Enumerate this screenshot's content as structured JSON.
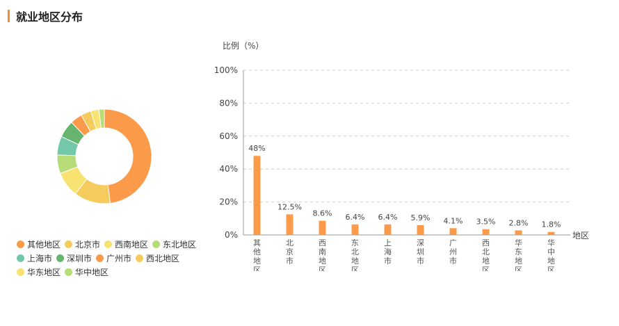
{
  "header": {
    "title": "就业地区分布"
  },
  "colors": {
    "accent": "#f28d2c",
    "bar": "#fb9b4a",
    "grid": "#cfcfcf",
    "axis": "#999999"
  },
  "chart_data": [
    {
      "type": "pie",
      "variant": "donut",
      "categories": [
        "其他地区",
        "北京市",
        "西南地区",
        "东北地区",
        "上海市",
        "深圳市",
        "广州市",
        "西北地区",
        "华东地区",
        "华中地区"
      ],
      "values": [
        48,
        12.5,
        8.6,
        6.4,
        6.4,
        5.9,
        4.1,
        3.5,
        2.8,
        1.8
      ],
      "colors": [
        "#fb9b4a",
        "#f5cb5e",
        "#f8e272",
        "#b6db77",
        "#73c8a9",
        "#67b46f",
        "#fb9b4a",
        "#f5cb5e",
        "#f8e272",
        "#b6db77"
      ],
      "legend": {
        "position": "bottom-left"
      }
    },
    {
      "type": "bar",
      "categories": [
        "其他地区",
        "北京市",
        "西南地区",
        "东北地区",
        "上海市",
        "深圳市",
        "广州市",
        "西北地区",
        "华东地区",
        "华中地区"
      ],
      "values": [
        48,
        12.5,
        8.6,
        6.4,
        6.4,
        5.9,
        4.1,
        3.5,
        2.8,
        1.8
      ],
      "data_labels": [
        "48%",
        "12.5%",
        "8.6%",
        "6.4%",
        "6.4%",
        "5.9%",
        "4.1%",
        "3.5%",
        "2.8%",
        "1.8%"
      ],
      "ylabel": "比例（%）",
      "xlabel": "地区",
      "ylim": [
        0,
        100
      ],
      "yticks": [
        0,
        20,
        40,
        60,
        80,
        100
      ],
      "ytick_labels": [
        "0%",
        "20%",
        "40%",
        "60%",
        "80%",
        "100%"
      ],
      "grid": true
    }
  ]
}
